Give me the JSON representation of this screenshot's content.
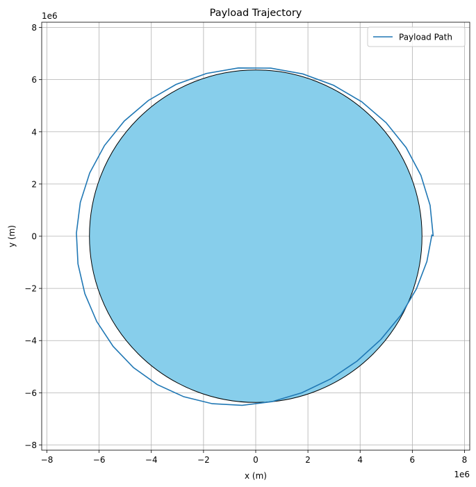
{
  "chart_data": {
    "type": "line",
    "title": "Payload Trajectory",
    "xlabel": "x (m)",
    "ylabel": "y (m)",
    "x_offset_label": "1e6",
    "y_offset_label": "1e6",
    "xlim": [
      -8.2,
      8.2
    ],
    "ylim": [
      -8.2,
      8.2
    ],
    "xticks": [
      -8,
      -6,
      -4,
      -2,
      0,
      2,
      4,
      6,
      8
    ],
    "yticks": [
      -8,
      -6,
      -4,
      -2,
      0,
      2,
      4,
      6,
      8
    ],
    "xtick_labels": [
      "−8",
      "−6",
      "−4",
      "−2",
      "0",
      "2",
      "4",
      "6",
      "8"
    ],
    "ytick_labels": [
      "−8",
      "−6",
      "−4",
      "−2",
      "0",
      "2",
      "4",
      "6",
      "8"
    ],
    "grid": true,
    "legend_position": "top-right",
    "earth": {
      "radius": 6.371,
      "fill_color": "#87ceeb",
      "edge_color": "#000000"
    },
    "series": [
      {
        "name": "Payload Path",
        "color": "#1f77b4",
        "orbit_radius": 6.8,
        "x": [
          6.8,
          6.681,
          6.33,
          5.764,
          4.997,
          4.059,
          2.983,
          1.807,
          0.575,
          -0.667,
          -1.889,
          -3.052,
          -4.113,
          -5.037,
          -5.793,
          -6.36,
          -6.721,
          -6.87,
          -6.81,
          -6.546,
          -6.092,
          -5.463,
          -4.683,
          -3.772,
          -2.758,
          -1.666,
          -0.523,
          0.628,
          1.766,
          2.862,
          3.883,
          4.793,
          5.561,
          6.157,
          6.558,
          6.748,
          6.76,
          6.74
        ],
        "y": [
          0.0,
          1.185,
          2.33,
          3.396,
          4.348,
          5.153,
          5.783,
          6.218,
          6.442,
          6.448,
          6.237,
          5.817,
          5.202,
          4.413,
          3.477,
          2.425,
          1.293,
          0.118,
          -1.062,
          -2.205,
          -3.269,
          -4.222,
          -5.036,
          -5.686,
          -6.151,
          -6.419,
          -6.481,
          -6.339,
          -5.999,
          -5.474,
          -4.785,
          -3.958,
          -3.025,
          -2.019,
          -0.97,
          0.04,
          0.03,
          0.0
        ]
      }
    ]
  }
}
